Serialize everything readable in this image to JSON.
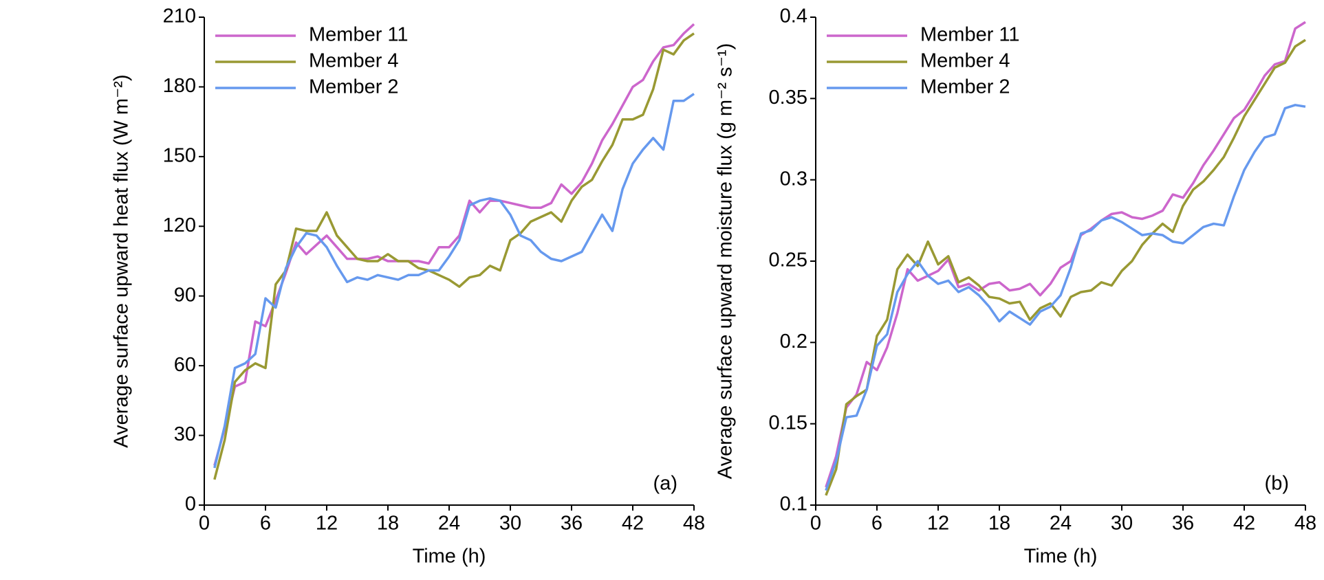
{
  "chart_data": [
    {
      "type": "line",
      "y_label": "Average surface upward heat flux (W m⁻²)",
      "x_label": "Time (h)",
      "annotation": "(a)",
      "legend": "upper left",
      "x": [
        1,
        2,
        3,
        4,
        5,
        6,
        7,
        8,
        9,
        10,
        11,
        12,
        13,
        14,
        15,
        16,
        17,
        18,
        19,
        20,
        21,
        22,
        23,
        24,
        25,
        26,
        27,
        28,
        29,
        30,
        31,
        32,
        33,
        34,
        35,
        36,
        37,
        38,
        39,
        40,
        41,
        42,
        43,
        44,
        45,
        46,
        47,
        48
      ],
      "xlim": [
        0,
        48
      ],
      "xticks": [
        0,
        6,
        12,
        18,
        24,
        30,
        36,
        42,
        48
      ],
      "ylim": [
        0,
        210
      ],
      "yticks": [
        0,
        30,
        60,
        90,
        120,
        150,
        180,
        210
      ],
      "series": [
        {
          "name": "Member 11",
          "color": "#cc66cc",
          "values": [
            17,
            33,
            51,
            53,
            79,
            77,
            88,
            100,
            113,
            108,
            112,
            116,
            111,
            106,
            106,
            106,
            107,
            105,
            105,
            105,
            105,
            104,
            111,
            111,
            116,
            131,
            126,
            131,
            131,
            130,
            129,
            128,
            128,
            130,
            138,
            134,
            139,
            147,
            157,
            164,
            172,
            180,
            183,
            191,
            197,
            198,
            203,
            207
          ]
        },
        {
          "name": "Member 4",
          "color": "#999933",
          "values": [
            11,
            28,
            53,
            58,
            61,
            59,
            95,
            101,
            119,
            118,
            118,
            126,
            116,
            111,
            106,
            105,
            105,
            108,
            105,
            105,
            102,
            101,
            99,
            97,
            94,
            98,
            99,
            103,
            101,
            114,
            117,
            122,
            124,
            126,
            122,
            131,
            137,
            140,
            148,
            155,
            166,
            166,
            168,
            179,
            196,
            194,
            200,
            203
          ]
        },
        {
          "name": "Member 2",
          "color": "#6699ee",
          "values": [
            16,
            34,
            59,
            61,
            65,
            89,
            85,
            102,
            111,
            117,
            116,
            111,
            103,
            96,
            98,
            97,
            99,
            98,
            97,
            99,
            99,
            101,
            101,
            107,
            114,
            129,
            131,
            132,
            131,
            125,
            116,
            114,
            109,
            106,
            105,
            107,
            109,
            117,
            125,
            118,
            136,
            147,
            153,
            158,
            153,
            174,
            174,
            177
          ]
        }
      ]
    },
    {
      "type": "line",
      "y_label": "Average surface upward moisture flux (g m⁻² s⁻¹)",
      "x_label": "Time (h)",
      "annotation": "(b)",
      "legend": "upper left",
      "x": [
        1,
        2,
        3,
        4,
        5,
        6,
        7,
        8,
        9,
        10,
        11,
        12,
        13,
        14,
        15,
        16,
        17,
        18,
        19,
        20,
        21,
        22,
        23,
        24,
        25,
        26,
        27,
        28,
        29,
        30,
        31,
        32,
        33,
        34,
        35,
        36,
        37,
        38,
        39,
        40,
        41,
        42,
        43,
        44,
        45,
        46,
        47,
        48
      ],
      "xlim": [
        0,
        48
      ],
      "xticks": [
        0,
        6,
        12,
        18,
        24,
        30,
        36,
        42,
        48
      ],
      "ylim": [
        0.1,
        0.4
      ],
      "yticks": [
        0.1,
        0.15,
        0.2,
        0.25,
        0.3,
        0.35,
        0.4
      ],
      "series": [
        {
          "name": "Member 11",
          "color": "#cc66cc",
          "values": [
            0.111,
            0.13,
            0.16,
            0.168,
            0.188,
            0.183,
            0.197,
            0.218,
            0.245,
            0.238,
            0.241,
            0.244,
            0.251,
            0.234,
            0.236,
            0.232,
            0.236,
            0.237,
            0.232,
            0.233,
            0.236,
            0.229,
            0.236,
            0.246,
            0.25,
            0.266,
            0.27,
            0.275,
            0.279,
            0.28,
            0.277,
            0.276,
            0.278,
            0.281,
            0.291,
            0.289,
            0.298,
            0.309,
            0.318,
            0.328,
            0.338,
            0.343,
            0.353,
            0.364,
            0.371,
            0.373,
            0.393,
            0.397
          ]
        },
        {
          "name": "Member 4",
          "color": "#999933",
          "values": [
            0.106,
            0.122,
            0.162,
            0.167,
            0.171,
            0.204,
            0.214,
            0.245,
            0.254,
            0.247,
            0.262,
            0.248,
            0.253,
            0.237,
            0.24,
            0.235,
            0.228,
            0.227,
            0.224,
            0.225,
            0.214,
            0.221,
            0.224,
            0.216,
            0.228,
            0.231,
            0.232,
            0.237,
            0.235,
            0.244,
            0.25,
            0.26,
            0.267,
            0.273,
            0.268,
            0.284,
            0.294,
            0.299,
            0.306,
            0.314,
            0.326,
            0.339,
            0.349,
            0.359,
            0.369,
            0.372,
            0.382,
            0.386
          ]
        },
        {
          "name": "Member 2",
          "color": "#6699ee",
          "values": [
            0.109,
            0.127,
            0.154,
            0.155,
            0.171,
            0.198,
            0.205,
            0.231,
            0.242,
            0.25,
            0.241,
            0.236,
            0.238,
            0.231,
            0.234,
            0.229,
            0.222,
            0.213,
            0.219,
            0.215,
            0.211,
            0.219,
            0.222,
            0.229,
            0.246,
            0.267,
            0.269,
            0.275,
            0.277,
            0.274,
            0.27,
            0.266,
            0.267,
            0.266,
            0.262,
            0.261,
            0.266,
            0.271,
            0.273,
            0.272,
            0.29,
            0.306,
            0.317,
            0.326,
            0.328,
            0.344,
            0.346,
            0.345
          ]
        }
      ]
    }
  ]
}
